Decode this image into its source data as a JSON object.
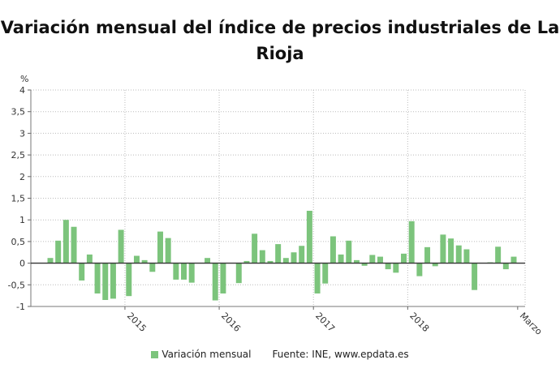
{
  "header": {
    "title_line1": "Variación mensual del índice de precios industriales de La",
    "title_line2": "Rioja"
  },
  "legend": {
    "series_label": "Variación mensual",
    "source": "Fuente: INE, www.epdata.es"
  },
  "colors": {
    "bar": "#7cc47c",
    "zero_line": "#333333",
    "grid": "#bbbbbb"
  },
  "chart_data": {
    "type": "bar",
    "title": "Variación mensual del índice de precios industriales de La Rioja",
    "ylabel": "%",
    "ylim": [
      -1,
      4
    ],
    "yticks": [
      {
        "value": 4,
        "label": "4"
      },
      {
        "value": 3.5,
        "label": "3,5"
      },
      {
        "value": 3,
        "label": "3"
      },
      {
        "value": 2.5,
        "label": "2,5"
      },
      {
        "value": 2,
        "label": "2"
      },
      {
        "value": 1.5,
        "label": "1,5"
      },
      {
        "value": 1,
        "label": "1"
      },
      {
        "value": 0.5,
        "label": "0,5"
      },
      {
        "value": 0,
        "label": "0"
      },
      {
        "value": -0.5,
        "label": "-0,5"
      },
      {
        "value": -1,
        "label": "-1"
      }
    ],
    "xtick_labels": [
      {
        "label": "2015",
        "index": 10
      },
      {
        "label": "2016",
        "index": 22
      },
      {
        "label": "2017",
        "index": 34
      },
      {
        "label": "2018",
        "index": 46
      },
      {
        "label": "Marzo",
        "index": 60
      }
    ],
    "vgrid_indices": [
      10,
      22,
      34,
      46
    ],
    "series": [
      {
        "name": "Variación mensual",
        "values": [
          0.12,
          0.52,
          1.0,
          0.84,
          -0.4,
          0.2,
          -0.7,
          -0.85,
          -0.82,
          0.77,
          -0.76,
          0.17,
          0.07,
          -0.2,
          0.73,
          0.58,
          -0.38,
          -0.38,
          -0.45,
          0.0,
          0.12,
          -0.86,
          -0.7,
          0.0,
          -0.46,
          0.05,
          0.68,
          0.3,
          0.05,
          0.44,
          0.12,
          0.25,
          0.4,
          1.21,
          -0.7,
          -0.47,
          0.62,
          0.2,
          0.52,
          0.07,
          -0.06,
          0.19,
          0.15,
          -0.14,
          -0.22,
          0.22,
          0.97,
          -0.3,
          0.37,
          -0.07,
          0.66,
          0.57,
          0.41,
          0.32,
          -0.62,
          0.0,
          0.02,
          0.38,
          -0.14,
          0.15
        ]
      }
    ]
  }
}
